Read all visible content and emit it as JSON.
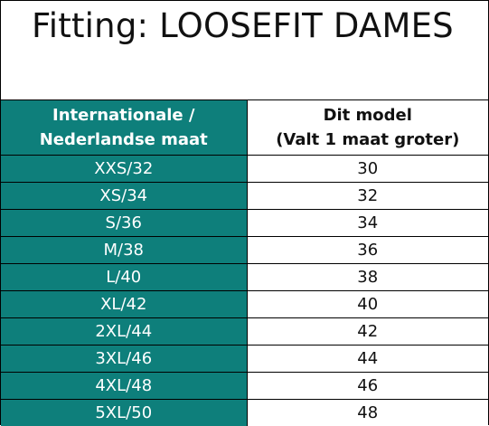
{
  "title": "Fitting: LOOSEFIT DAMES",
  "colors": {
    "accent": "#0e7f7b",
    "text": "#111111",
    "header_text": "#ffffff",
    "border": "#000000"
  },
  "table": {
    "headers": {
      "left_line1": "Internationale /",
      "left_line2": "Nederlandse maat",
      "right_line1": "Dit model",
      "right_line2": "(Valt 1 maat groter)"
    },
    "rows": [
      {
        "size": "XXS/32",
        "model": "30"
      },
      {
        "size": "XS/34",
        "model": "32"
      },
      {
        "size": "S/36",
        "model": "34"
      },
      {
        "size": "M/38",
        "model": "36"
      },
      {
        "size": "L/40",
        "model": "38"
      },
      {
        "size": "XL/42",
        "model": "40"
      },
      {
        "size": "2XL/44",
        "model": "42"
      },
      {
        "size": "3XL/46",
        "model": "44"
      },
      {
        "size": "4XL/48",
        "model": "46"
      },
      {
        "size": "5XL/50",
        "model": "48"
      }
    ]
  }
}
